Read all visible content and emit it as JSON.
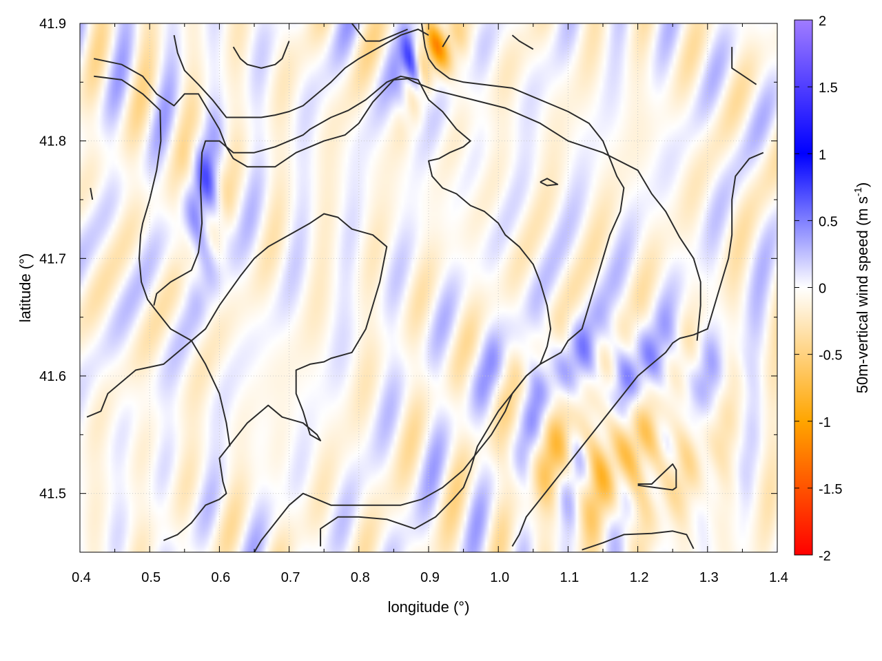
{
  "chart_data": {
    "type": "heatmap",
    "title": "",
    "xlabel": "longitude (°)",
    "ylabel": "latitude (°)",
    "xlim": [
      0.4,
      1.4
    ],
    "ylim": [
      41.45,
      41.9
    ],
    "xticks": [
      "0.4",
      "0.5",
      "0.6",
      "0.7",
      "0.8",
      "0.9",
      "1.0",
      "1.1",
      "1.2",
      "1.3",
      "1.4"
    ],
    "yticks": [
      "41.5",
      "41.6",
      "41.7",
      "41.8",
      "41.9"
    ],
    "grid": true,
    "colorbar": {
      "label_main": "50m-vertical wind speed (m s",
      "label_sup": "-1",
      "label_close": ")",
      "range": [
        -2,
        2
      ],
      "ticks": [
        "-2",
        "-1.5",
        "-1",
        "-0.5",
        "0",
        "0.5",
        "1",
        "1.5",
        "2"
      ],
      "stops": [
        {
          "v": -2,
          "color": "#ff0000"
        },
        {
          "v": -1,
          "color": "#ffa500"
        },
        {
          "v": 0,
          "color": "#ffffff"
        },
        {
          "v": 1,
          "color": "#0000ff"
        },
        {
          "v": 2,
          "color": "#a07cff"
        }
      ]
    },
    "features": [
      {
        "name": "positive updraft band southeast",
        "lon": [
          1.02,
          1.32
        ],
        "lat": [
          41.56,
          41.64
        ],
        "value": 0.6
      },
      {
        "name": "positive updraft band north",
        "lon": [
          0.87,
          0.88
        ],
        "lat": [
          41.83,
          41.9
        ],
        "value": 1.2
      },
      {
        "name": "positive band west",
        "lon": [
          0.56,
          0.6
        ],
        "lat": [
          41.68,
          41.8
        ],
        "value": 0.5
      },
      {
        "name": "negative downdraft southeast",
        "lon": [
          1.05,
          1.3
        ],
        "lat": [
          41.48,
          41.6
        ],
        "value": -0.7
      },
      {
        "name": "negative downdraft north",
        "lon": [
          0.88,
          0.93
        ],
        "lat": [
          41.86,
          41.9
        ],
        "value": -1.2
      }
    ],
    "contours": [
      [
        [
          0.42,
          41.87
        ],
        [
          0.46,
          41.865
        ],
        [
          0.49,
          41.855
        ],
        [
          0.51,
          41.84
        ],
        [
          0.535,
          41.83
        ],
        [
          0.55,
          41.84
        ],
        [
          0.57,
          41.84
        ],
        [
          0.6,
          41.81
        ],
        [
          0.61,
          41.795
        ],
        [
          0.62,
          41.785
        ],
        [
          0.64,
          41.778
        ],
        [
          0.68,
          41.778
        ],
        [
          0.71,
          41.79
        ],
        [
          0.73,
          41.795
        ],
        [
          0.75,
          41.8
        ],
        [
          0.78,
          41.805
        ],
        [
          0.8,
          41.815
        ],
        [
          0.82,
          41.833
        ],
        [
          0.85,
          41.852
        ],
        [
          0.87,
          41.853
        ],
        [
          0.88,
          41.85
        ],
        [
          0.91,
          41.843
        ],
        [
          0.95,
          41.837
        ],
        [
          1.01,
          41.828
        ],
        [
          1.06,
          41.815
        ],
        [
          1.1,
          41.8
        ],
        [
          1.15,
          41.79
        ],
        [
          1.2,
          41.775
        ],
        [
          1.22,
          41.755
        ],
        [
          1.24,
          41.74
        ],
        [
          1.26,
          41.718
        ],
        [
          1.28,
          41.7
        ],
        [
          1.29,
          41.68
        ],
        [
          1.29,
          41.66
        ],
        [
          1.285,
          41.63
        ]
      ],
      [
        [
          0.42,
          41.855
        ],
        [
          0.46,
          41.852
        ],
        [
          0.49,
          41.84
        ],
        [
          0.515,
          41.826
        ],
        [
          0.516,
          41.8
        ],
        [
          0.51,
          41.775
        ],
        [
          0.5,
          41.75
        ],
        [
          0.49,
          41.73
        ],
        [
          0.487,
          41.72
        ],
        [
          0.485,
          41.7
        ],
        [
          0.488,
          41.68
        ],
        [
          0.497,
          41.665
        ],
        [
          0.51,
          41.655
        ],
        [
          0.53,
          41.64
        ],
        [
          0.56,
          41.63
        ],
        [
          0.58,
          41.61
        ],
        [
          0.6,
          41.585
        ],
        [
          0.61,
          41.56
        ],
        [
          0.615,
          41.54
        ]
      ],
      [
        [
          0.415,
          41.76
        ],
        [
          0.418,
          41.75
        ]
      ],
      [
        [
          0.506,
          41.66
        ],
        [
          0.51,
          41.67
        ],
        [
          0.53,
          41.68
        ],
        [
          0.56,
          41.69
        ],
        [
          0.57,
          41.705
        ],
        [
          0.575,
          41.73
        ],
        [
          0.573,
          41.76
        ],
        [
          0.575,
          41.79
        ],
        [
          0.58,
          41.8
        ],
        [
          0.6,
          41.8
        ],
        [
          0.62,
          41.79
        ],
        [
          0.63,
          41.79
        ],
        [
          0.65,
          41.79
        ],
        [
          0.68,
          41.795
        ],
        [
          0.7,
          41.8
        ],
        [
          0.72,
          41.805
        ],
        [
          0.73,
          41.81
        ],
        [
          0.76,
          41.82
        ],
        [
          0.785,
          41.826
        ],
        [
          0.81,
          41.835
        ],
        [
          0.84,
          41.85
        ],
        [
          0.86,
          41.855
        ],
        [
          0.885,
          41.852
        ],
        [
          0.9,
          41.835
        ],
        [
          0.92,
          41.825
        ],
        [
          0.94,
          41.81
        ],
        [
          0.96,
          41.8
        ],
        [
          0.95,
          41.795
        ],
        [
          0.93,
          41.79
        ],
        [
          0.915,
          41.785
        ],
        [
          0.9,
          41.783
        ],
        [
          0.905,
          41.77
        ],
        [
          0.92,
          41.76
        ],
        [
          0.94,
          41.755
        ],
        [
          0.96,
          41.745
        ],
        [
          0.98,
          41.74
        ],
        [
          1.0,
          41.73
        ],
        [
          1.01,
          41.72
        ],
        [
          1.03,
          41.71
        ],
        [
          1.05,
          41.695
        ],
        [
          1.06,
          41.68
        ],
        [
          1.07,
          41.66
        ],
        [
          1.075,
          41.64
        ],
        [
          1.07,
          41.625
        ],
        [
          1.06,
          41.61
        ],
        [
          1.04,
          41.6
        ],
        [
          1.02,
          41.585
        ],
        [
          1.01,
          41.57
        ],
        [
          0.99,
          41.55
        ],
        [
          0.97,
          41.535
        ],
        [
          0.95,
          41.52
        ],
        [
          0.92,
          41.505
        ],
        [
          0.89,
          41.495
        ],
        [
          0.86,
          41.49
        ],
        [
          0.82,
          41.49
        ],
        [
          0.79,
          41.49
        ],
        [
          0.76,
          41.49
        ],
        [
          0.74,
          41.495
        ],
        [
          0.72,
          41.5
        ],
        [
          0.7,
          41.49
        ],
        [
          0.68,
          41.475
        ],
        [
          0.66,
          41.46
        ],
        [
          0.65,
          41.45
        ]
      ],
      [
        [
          0.9,
          41.89
        ],
        [
          0.885,
          41.895
        ],
        [
          0.86,
          41.89
        ],
        [
          0.83,
          41.88
        ],
        [
          0.8,
          41.87
        ],
        [
          0.78,
          41.862
        ],
        [
          0.76,
          41.85
        ],
        [
          0.74,
          41.84
        ],
        [
          0.72,
          41.83
        ],
        [
          0.7,
          41.825
        ],
        [
          0.68,
          41.822
        ],
        [
          0.66,
          41.82
        ],
        [
          0.63,
          41.82
        ],
        [
          0.61,
          41.82
        ],
        [
          0.59,
          41.835
        ],
        [
          0.57,
          41.848
        ],
        [
          0.55,
          41.86
        ],
        [
          0.54,
          41.875
        ],
        [
          0.535,
          41.89
        ]
      ],
      [
        [
          0.62,
          41.88
        ],
        [
          0.63,
          41.87
        ],
        [
          0.64,
          41.865
        ],
        [
          0.66,
          41.862
        ],
        [
          0.68,
          41.865
        ],
        [
          0.69,
          41.87
        ],
        [
          0.7,
          41.885
        ]
      ],
      [
        [
          0.79,
          41.9
        ],
        [
          0.81,
          41.885
        ],
        [
          0.83,
          41.885
        ],
        [
          0.87,
          41.895
        ]
      ],
      [
        [
          0.92,
          41.88
        ],
        [
          0.93,
          41.89
        ]
      ],
      [
        [
          1.02,
          41.89
        ],
        [
          1.03,
          41.885
        ],
        [
          1.05,
          41.878
        ]
      ],
      [
        [
          1.06,
          41.765
        ],
        [
          1.07,
          41.762
        ],
        [
          1.085,
          41.763
        ],
        [
          1.07,
          41.768
        ],
        [
          1.06,
          41.765
        ]
      ],
      [
        [
          1.335,
          41.88
        ],
        [
          1.335,
          41.862
        ],
        [
          1.35,
          41.856
        ],
        [
          1.37,
          41.848
        ]
      ],
      [
        [
          1.38,
          41.79
        ],
        [
          1.36,
          41.785
        ],
        [
          1.34,
          41.77
        ],
        [
          1.335,
          41.75
        ],
        [
          1.335,
          41.72
        ],
        [
          1.33,
          41.7
        ],
        [
          1.32,
          41.68
        ],
        [
          1.31,
          41.66
        ],
        [
          1.3,
          41.64
        ],
        [
          1.28,
          41.635
        ],
        [
          1.26,
          41.632
        ],
        [
          1.25,
          41.628
        ],
        [
          1.24,
          41.62
        ],
        [
          1.22,
          41.61
        ],
        [
          1.2,
          41.6
        ],
        [
          1.18,
          41.585
        ],
        [
          1.16,
          41.57
        ],
        [
          1.14,
          41.555
        ],
        [
          1.12,
          41.54
        ],
        [
          1.1,
          41.525
        ],
        [
          1.08,
          41.51
        ],
        [
          1.06,
          41.495
        ],
        [
          1.04,
          41.48
        ],
        [
          1.03,
          41.465
        ],
        [
          1.02,
          41.455
        ]
      ],
      [
        [
          1.12,
          41.452
        ],
        [
          1.15,
          41.458
        ],
        [
          1.18,
          41.465
        ],
        [
          1.22,
          41.466
        ],
        [
          1.25,
          41.468
        ],
        [
          1.27,
          41.465
        ],
        [
          1.28,
          41.453
        ]
      ],
      [
        [
          1.2,
          41.508
        ],
        [
          1.22,
          41.508
        ],
        [
          1.25,
          41.525
        ],
        [
          1.255,
          41.52
        ],
        [
          1.255,
          41.505
        ],
        [
          1.25,
          41.503
        ],
        [
          1.2,
          41.507
        ]
      ],
      [
        [
          0.52,
          41.46
        ],
        [
          0.54,
          41.465
        ],
        [
          0.56,
          41.475
        ],
        [
          0.58,
          41.49
        ],
        [
          0.6,
          41.495
        ],
        [
          0.61,
          41.5
        ],
        [
          0.605,
          41.51
        ],
        [
          0.6,
          41.53
        ],
        [
          0.62,
          41.545
        ],
        [
          0.64,
          41.56
        ],
        [
          0.67,
          41.575
        ],
        [
          0.69,
          41.565
        ],
        [
          0.72,
          41.56
        ],
        [
          0.74,
          41.55
        ],
        [
          0.745,
          41.545
        ],
        [
          0.73,
          41.55
        ],
        [
          0.72,
          41.57
        ],
        [
          0.71,
          41.585
        ],
        [
          0.71,
          41.605
        ],
        [
          0.73,
          41.61
        ],
        [
          0.75,
          41.612
        ],
        [
          0.76,
          41.615
        ],
        [
          0.79,
          41.62
        ],
        [
          0.81,
          41.64
        ],
        [
          0.82,
          41.66
        ],
        [
          0.83,
          41.68
        ],
        [
          0.835,
          41.695
        ],
        [
          0.84,
          41.71
        ],
        [
          0.82,
          41.72
        ],
        [
          0.79,
          41.725
        ],
        [
          0.77,
          41.735
        ],
        [
          0.75,
          41.738
        ],
        [
          0.73,
          41.73
        ],
        [
          0.7,
          41.72
        ],
        [
          0.67,
          41.71
        ],
        [
          0.65,
          41.7
        ],
        [
          0.63,
          41.685
        ],
        [
          0.6,
          41.66
        ],
        [
          0.58,
          41.64
        ],
        [
          0.55,
          41.625
        ],
        [
          0.52,
          41.61
        ],
        [
          0.48,
          41.605
        ],
        [
          0.44,
          41.585
        ],
        [
          0.43,
          41.57
        ],
        [
          0.41,
          41.565
        ]
      ],
      [
        [
          0.745,
          41.455
        ],
        [
          0.745,
          41.47
        ],
        [
          0.77,
          41.48
        ],
        [
          0.8,
          41.48
        ],
        [
          0.84,
          41.478
        ],
        [
          0.88,
          41.47
        ],
        [
          0.91,
          41.48
        ],
        [
          0.935,
          41.495
        ],
        [
          0.95,
          41.505
        ],
        [
          0.96,
          41.52
        ],
        [
          0.97,
          41.54
        ],
        [
          0.98,
          41.55
        ],
        [
          1.0,
          41.57
        ],
        [
          1.02,
          41.585
        ],
        [
          1.04,
          41.6
        ],
        [
          1.06,
          41.61
        ],
        [
          1.09,
          41.62
        ],
        [
          1.1,
          41.63
        ],
        [
          1.12,
          41.64
        ],
        [
          1.13,
          41.66
        ],
        [
          1.14,
          41.68
        ],
        [
          1.15,
          41.7
        ],
        [
          1.16,
          41.72
        ],
        [
          1.175,
          41.74
        ],
        [
          1.18,
          41.76
        ],
        [
          1.17,
          41.77
        ],
        [
          1.15,
          41.8
        ],
        [
          1.13,
          41.815
        ],
        [
          1.1,
          41.825
        ],
        [
          1.08,
          41.83
        ],
        [
          1.02,
          41.845
        ],
        [
          0.95,
          41.85
        ],
        [
          0.93,
          41.853
        ],
        [
          0.91,
          41.862
        ],
        [
          0.9,
          41.87
        ],
        [
          0.895,
          41.88
        ],
        [
          0.89,
          41.9
        ]
      ]
    ]
  }
}
